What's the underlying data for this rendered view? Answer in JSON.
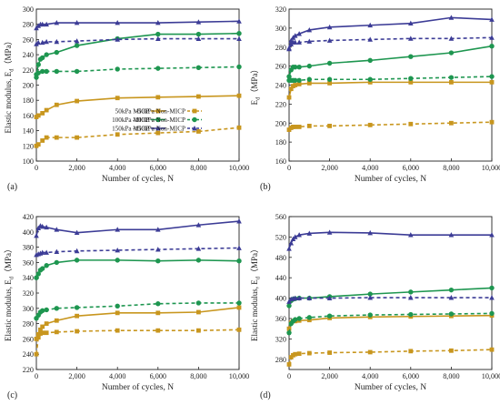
{
  "legend": {
    "entries": [
      {
        "label": "50kPa MICP",
        "color": "#C8961E",
        "dashed": false,
        "marker": "square"
      },
      {
        "label": "50kPa Non-MICP",
        "color": "#C8961E",
        "dashed": true,
        "marker": "square"
      },
      {
        "label": "100kPa MICP",
        "color": "#1E9650",
        "dashed": false,
        "marker": "circle"
      },
      {
        "label": "100kPa Non-MICP",
        "color": "#1E9650",
        "dashed": true,
        "marker": "circle"
      },
      {
        "label": "150kPa MICP",
        "color": "#3C3C96",
        "dashed": false,
        "marker": "triangle"
      },
      {
        "label": "150kPa Non-MICP",
        "color": "#3C3C96",
        "dashed": true,
        "marker": "triangle"
      }
    ]
  },
  "chart_data": [
    {
      "type": "line",
      "panel_label": "(a)",
      "xlabel": "Number of cycles, N",
      "ylabel": "Elastic modulus, E",
      "ylabel_sub": "d",
      "ylabel_unit": "（MPa）",
      "xlim": [
        0,
        10000
      ],
      "ylim": [
        100,
        300
      ],
      "xticks": [
        0,
        2000,
        4000,
        6000,
        8000,
        10000
      ],
      "xtick_labels": [
        "0",
        "2,000",
        "4,000",
        "6,000",
        "8,000",
        "10,000"
      ],
      "yticks": [
        100,
        120,
        140,
        160,
        180,
        200,
        220,
        240,
        260,
        280,
        300
      ],
      "series": [
        {
          "name": "50kPa MICP",
          "x": [
            0,
            100,
            300,
            500,
            1000,
            2000,
            4000,
            6000,
            8000,
            10000
          ],
          "values": [
            158,
            160,
            163,
            167,
            174,
            179,
            183,
            184,
            185,
            186
          ]
        },
        {
          "name": "50kPa Non-MICP",
          "x": [
            0,
            100,
            300,
            500,
            1000,
            2000,
            4000,
            6000,
            8000,
            10000
          ],
          "values": [
            120,
            122,
            127,
            131,
            131,
            131,
            135,
            137,
            139,
            144
          ]
        },
        {
          "name": "100kPa MICP",
          "x": [
            0,
            100,
            200,
            300,
            500,
            1000,
            2000,
            4000,
            6000,
            8000,
            10000
          ],
          "values": [
            214,
            227,
            234,
            236,
            240,
            243,
            252,
            261,
            267,
            267,
            268
          ]
        },
        {
          "name": "100kPa Non-MICP",
          "x": [
            0,
            100,
            300,
            500,
            1000,
            2000,
            4000,
            6000,
            8000,
            10000
          ],
          "values": [
            210,
            216,
            218,
            218,
            218,
            218,
            221,
            222,
            223,
            224
          ]
        },
        {
          "name": "150kPa MICP",
          "x": [
            0,
            100,
            200,
            300,
            500,
            1000,
            2000,
            4000,
            6000,
            8000,
            10000
          ],
          "values": [
            275,
            278,
            280,
            280,
            280,
            282,
            282,
            282,
            282,
            283,
            284
          ]
        },
        {
          "name": "150kPa Non-MICP",
          "x": [
            0,
            100,
            300,
            500,
            1000,
            2000,
            4000,
            6000,
            8000,
            10000
          ],
          "values": [
            254,
            256,
            256,
            257,
            257,
            258,
            260,
            261,
            261,
            261
          ]
        }
      ]
    },
    {
      "type": "line",
      "panel_label": "(b)",
      "xlabel": "Number of cycles, N",
      "ylabel": "E",
      "ylabel_sub": "d",
      "ylabel_unit": "（MPa）",
      "xlim": [
        0,
        10000
      ],
      "ylim": [
        160,
        320
      ],
      "xticks": [
        0,
        2000,
        4000,
        6000,
        8000,
        10000
      ],
      "xtick_labels": [
        "0",
        "2,000",
        "4,000",
        "6,000",
        "8,000",
        "10,000"
      ],
      "yticks": [
        160,
        180,
        200,
        220,
        240,
        260,
        280,
        300,
        320
      ],
      "series": [
        {
          "name": "50kPa MICP",
          "x": [
            0,
            100,
            200,
            300,
            500,
            1000,
            2000,
            4000,
            6000,
            8000,
            10000
          ],
          "values": [
            227,
            236,
            239,
            240,
            241,
            242,
            242,
            243,
            243,
            243,
            243
          ]
        },
        {
          "name": "50kPa Non-MICP",
          "x": [
            0,
            100,
            200,
            300,
            500,
            1000,
            2000,
            4000,
            6000,
            8000,
            10000
          ],
          "values": [
            193,
            195,
            196,
            196,
            196,
            197,
            197,
            198,
            199,
            200,
            201
          ]
        },
        {
          "name": "100kPa MICP",
          "x": [
            0,
            100,
            200,
            300,
            500,
            1000,
            2000,
            4000,
            6000,
            8000,
            10000
          ],
          "values": [
            249,
            256,
            259,
            259,
            259,
            260,
            263,
            266,
            270,
            274,
            281
          ]
        },
        {
          "name": "100kPa Non-MICP",
          "x": [
            0,
            100,
            200,
            300,
            500,
            1000,
            2000,
            4000,
            6000,
            8000,
            10000
          ],
          "values": [
            245,
            245,
            245,
            245,
            245,
            246,
            246,
            246,
            247,
            248,
            249
          ]
        },
        {
          "name": "150kPa MICP",
          "x": [
            0,
            100,
            200,
            300,
            500,
            1000,
            2000,
            4000,
            6000,
            8000,
            10000
          ],
          "values": [
            279,
            287,
            290,
            292,
            294,
            298,
            301,
            303,
            305,
            311,
            309
          ]
        },
        {
          "name": "150kPa Non-MICP",
          "x": [
            0,
            100,
            200,
            300,
            500,
            1000,
            2000,
            4000,
            6000,
            8000,
            10000
          ],
          "values": [
            278,
            283,
            285,
            285,
            285,
            286,
            287,
            288,
            289,
            289,
            290
          ]
        }
      ]
    },
    {
      "type": "line",
      "panel_label": "(c)",
      "xlabel": "Number of cycles, N",
      "ylabel": "Elastic modulus, E",
      "ylabel_sub": "d",
      "ylabel_unit": "（MPa）",
      "xlim": [
        0,
        10000
      ],
      "ylim": [
        220,
        420
      ],
      "xticks": [
        0,
        2000,
        4000,
        6000,
        8000,
        10000
      ],
      "xtick_labels": [
        "0",
        "2,000",
        "4,000",
        "6,000",
        "8,000",
        "10,000"
      ],
      "yticks": [
        220,
        240,
        260,
        280,
        300,
        320,
        340,
        360,
        380,
        400,
        420
      ],
      "series": [
        {
          "name": "50kPa MICP",
          "x": [
            0,
            100,
            200,
            300,
            500,
            1000,
            2000,
            4000,
            6000,
            8000,
            10000
          ],
          "values": [
            260,
            266,
            272,
            276,
            280,
            284,
            290,
            294,
            294,
            295,
            301
          ]
        },
        {
          "name": "50kPa Non-MICP",
          "x": [
            0,
            100,
            200,
            300,
            500,
            1000,
            2000,
            4000,
            6000,
            8000,
            10000
          ],
          "values": [
            240,
            262,
            267,
            268,
            268,
            269,
            270,
            271,
            271,
            271,
            272
          ]
        },
        {
          "name": "100kPa MICP",
          "x": [
            0,
            100,
            200,
            300,
            500,
            1000,
            2000,
            4000,
            6000,
            8000,
            10000
          ],
          "values": [
            340,
            345,
            350,
            352,
            356,
            360,
            363,
            363,
            362,
            363,
            362
          ]
        },
        {
          "name": "100kPa Non-MICP",
          "x": [
            0,
            100,
            200,
            300,
            500,
            1000,
            2000,
            4000,
            6000,
            8000,
            10000
          ],
          "values": [
            287,
            291,
            295,
            297,
            298,
            300,
            301,
            303,
            306,
            307,
            307
          ]
        },
        {
          "name": "150kPa MICP",
          "x": [
            0,
            100,
            200,
            300,
            500,
            1000,
            2000,
            4000,
            6000,
            8000,
            10000
          ],
          "values": [
            395,
            405,
            408,
            407,
            406,
            403,
            399,
            403,
            403,
            409,
            414
          ]
        },
        {
          "name": "150kPa Non-MICP",
          "x": [
            0,
            100,
            200,
            300,
            500,
            1000,
            2000,
            4000,
            6000,
            8000,
            10000
          ],
          "values": [
            370,
            371,
            372,
            373,
            373,
            374,
            375,
            376,
            377,
            378,
            379
          ]
        }
      ]
    },
    {
      "type": "line",
      "panel_label": "(d)",
      "xlabel": "Number of cycles, N",
      "ylabel": "Elastic modulus, E",
      "ylabel_sub": "d",
      "ylabel_unit": "（MPa）",
      "xlim": [
        0,
        10000
      ],
      "ylim": [
        260,
        560
      ],
      "xticks": [
        0,
        2000,
        4000,
        6000,
        8000,
        10000
      ],
      "xtick_labels": [
        "0",
        "2,000",
        "4,000",
        "6,000",
        "8,000",
        "10,000"
      ],
      "yticks": [
        280,
        320,
        360,
        400,
        440,
        480,
        520,
        560
      ],
      "series": [
        {
          "name": "50kPa MICP",
          "x": [
            0,
            100,
            200,
            300,
            500,
            1000,
            2000,
            4000,
            6000,
            8000,
            10000
          ],
          "values": [
            340,
            352,
            355,
            355,
            356,
            357,
            361,
            363,
            364,
            365,
            366
          ]
        },
        {
          "name": "50kPa Non-MICP",
          "x": [
            0,
            100,
            200,
            300,
            500,
            1000,
            2000,
            4000,
            6000,
            8000,
            10000
          ],
          "values": [
            270,
            284,
            288,
            290,
            291,
            292,
            293,
            294,
            296,
            297,
            299
          ]
        },
        {
          "name": "100kPa MICP",
          "x": [
            0,
            100,
            200,
            300,
            500,
            1000,
            2000,
            4000,
            6000,
            8000,
            10000
          ],
          "values": [
            385,
            395,
            398,
            399,
            400,
            400,
            403,
            408,
            412,
            416,
            420
          ]
        },
        {
          "name": "100kPa Non-MICP",
          "x": [
            0,
            100,
            200,
            300,
            500,
            1000,
            2000,
            4000,
            6000,
            8000,
            10000
          ],
          "values": [
            332,
            350,
            355,
            358,
            360,
            362,
            365,
            367,
            368,
            369,
            370
          ]
        },
        {
          "name": "150kPa MICP",
          "x": [
            0,
            100,
            200,
            300,
            500,
            1000,
            2000,
            4000,
            6000,
            8000,
            10000
          ],
          "values": [
            497,
            508,
            516,
            520,
            524,
            527,
            529,
            528,
            524,
            524,
            524
          ]
        },
        {
          "name": "150kPa Non-MICP",
          "x": [
            0,
            100,
            200,
            300,
            500,
            1000,
            2000,
            4000,
            6000,
            8000,
            10000
          ],
          "values": [
            393,
            398,
            399,
            400,
            400,
            400,
            400,
            401,
            401,
            401,
            401
          ]
        }
      ]
    }
  ]
}
